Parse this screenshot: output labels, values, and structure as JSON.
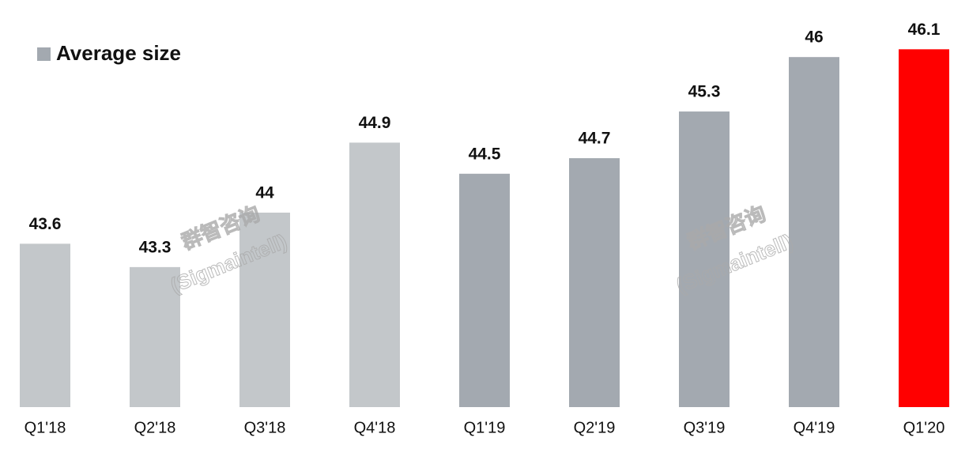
{
  "chart_data": {
    "type": "bar",
    "categories": [
      "Q1'18",
      "Q2'18",
      "Q3'18",
      "Q4'18",
      "Q1'19",
      "Q2'19",
      "Q3'19",
      "Q4'19",
      "Q1'20"
    ],
    "series": [
      {
        "name": "Average size",
        "color": "#a3a9b0",
        "values": [
          43.6,
          43.3,
          44,
          44.9,
          44.5,
          44.7,
          45.3,
          46,
          46.1
        ],
        "colors": [
          "#c3c7ca",
          "#c3c7ca",
          "#c3c7ca",
          "#c3c7ca",
          "#a3a9b0",
          "#a3a9b0",
          "#a3a9b0",
          "#a3a9b0",
          "#ff0000"
        ]
      }
    ],
    "ylim": [
      41.5,
      46.7
    ],
    "legend": "top-left",
    "watermarks": [
      "群智咨询",
      "(Sigmaintell)",
      "群智咨询",
      "(Sigmaintell)"
    ]
  }
}
